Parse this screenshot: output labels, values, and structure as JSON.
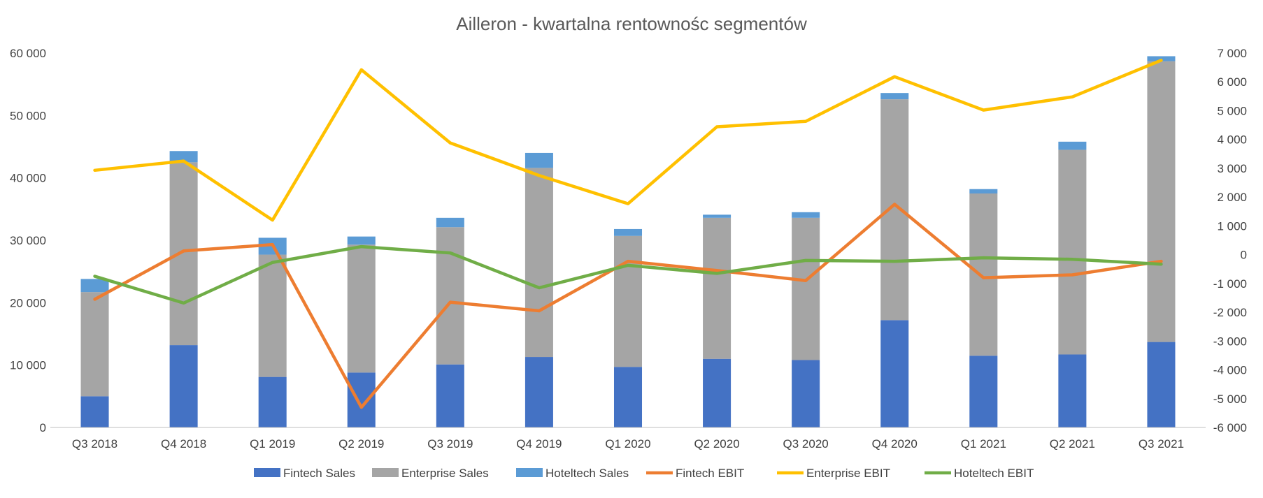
{
  "chart_data": {
    "type": "bar",
    "subtype": "stacked bar with lines on secondary axis",
    "title": "Ailleron - kwartalna rentownośc segmentów",
    "categories": [
      "Q3 2018",
      "Q4 2018",
      "Q1 2019",
      "Q2 2019",
      "Q3 2019",
      "Q4 2019",
      "Q1 2020",
      "Q2 2020",
      "Q3 2020",
      "Q4 2020",
      "Q1 2021",
      "Q2 2021",
      "Q3 2021"
    ],
    "y_left": {
      "min": 0,
      "max": 60000,
      "step": 10000,
      "tick_labels": [
        "0",
        "10 000",
        "20 000",
        "30 000",
        "40 000",
        "50 000",
        "60 000"
      ]
    },
    "y_right": {
      "min": -6000,
      "max": 7000,
      "step": 1000,
      "tick_labels": [
        "-6 000",
        "-5 000",
        "-4 000",
        "-3 000",
        "-2 000",
        "-1 000",
        "0",
        "1 000",
        "2 000",
        "3 000",
        "4 000",
        "5 000",
        "6 000",
        "7 000"
      ]
    },
    "grid": false,
    "legend_position": "bottom",
    "bar_series": [
      {
        "name": "Fintech Sales",
        "color": "#4472C4",
        "values": [
          5000,
          13200,
          8100,
          8800,
          10100,
          11300,
          9700,
          11000,
          10800,
          17200,
          11500,
          11700,
          13700
        ]
      },
      {
        "name": "Enterprise Sales",
        "color": "#A5A5A5",
        "values": [
          16700,
          29300,
          19600,
          20500,
          22000,
          30300,
          21000,
          22600,
          22800,
          35400,
          26000,
          32800,
          45000
        ]
      },
      {
        "name": "Hoteltech Sales",
        "color": "#5B9BD5",
        "values": [
          2100,
          1800,
          2700,
          1300,
          1500,
          2400,
          1100,
          500,
          900,
          1000,
          700,
          1300,
          800
        ]
      }
    ],
    "line_series": [
      {
        "name": "Fintech EBIT",
        "color": "#ED7D31",
        "axis": "right",
        "values": [
          -1550,
          130,
          350,
          -5300,
          -1650,
          -1950,
          -230,
          -550,
          -900,
          1750,
          -800,
          -700,
          -230
        ]
      },
      {
        "name": "Enterprise EBIT",
        "color": "#FFC000",
        "axis": "right",
        "values": [
          2930,
          3250,
          1200,
          6420,
          3880,
          2750,
          1770,
          4440,
          4630,
          6180,
          5020,
          5480,
          6750
        ]
      },
      {
        "name": "Hoteltech EBIT",
        "color": "#70AD47",
        "axis": "right",
        "values": [
          -750,
          -1680,
          -270,
          280,
          60,
          -1150,
          -370,
          -650,
          -200,
          -230,
          -110,
          -160,
          -330
        ]
      }
    ]
  }
}
